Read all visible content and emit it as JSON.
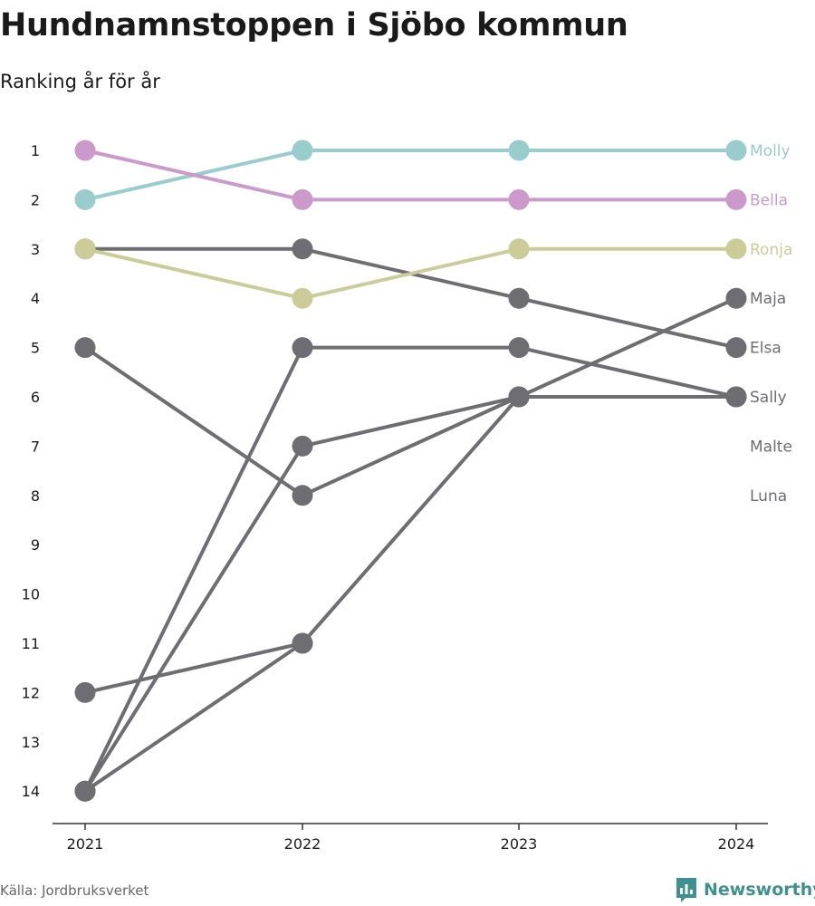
{
  "header": {
    "title": "Hundnamnstoppen i Sjöbo kommun",
    "subtitle": "Ranking år för år"
  },
  "footer": {
    "source": "Källa: Jordbruksverket",
    "brand": "Newsworthy",
    "brand_icon": "bar-chart-speech-bubble-icon"
  },
  "colors": {
    "molly": "#99cccc",
    "bella": "#cc99cc",
    "ronja": "#cccc99",
    "other": "#6e6d72",
    "axis": "#333333",
    "brand": "#3f9090"
  },
  "chart_data": {
    "type": "line",
    "x": [
      "2021",
      "2022",
      "2023",
      "2024"
    ],
    "ylim": [
      1,
      14
    ],
    "y_reversed": true,
    "y_ticks": [
      "1",
      "2",
      "3",
      "4",
      "5",
      "6",
      "7",
      "8",
      "9",
      "10",
      "11",
      "12",
      "13",
      "14"
    ],
    "grid": false,
    "series": [
      {
        "name": "Molly",
        "values": [
          2,
          1,
          1,
          1
        ],
        "color": "#99cccc",
        "highlight": true
      },
      {
        "name": "Bella",
        "values": [
          1,
          2,
          2,
          2
        ],
        "color": "#cc99cc",
        "highlight": true
      },
      {
        "name": "Ronja",
        "values": [
          3,
          4,
          3,
          3
        ],
        "color": "#cccc99",
        "highlight": true
      },
      {
        "name": "Maja",
        "values": [
          14,
          11,
          6,
          4
        ],
        "color": "#6e6d72",
        "highlight": false
      },
      {
        "name": "Elsa",
        "values": [
          3,
          3,
          4,
          5
        ],
        "color": "#6e6d72",
        "highlight": false
      },
      {
        "name": "Sally",
        "values": [
          14,
          7,
          6,
          6
        ],
        "color": "#6e6d72",
        "highlight": false
      },
      {
        "name": "Malte",
        "values": [
          5,
          8,
          6,
          6
        ],
        "color": "#6e6d72",
        "highlight": false
      },
      {
        "name": "Luna",
        "values": [
          14,
          5,
          5,
          6
        ],
        "color": "#6e6d72",
        "highlight": false
      },
      {
        "name": "",
        "values": [
          12,
          11,
          null,
          null
        ],
        "color": "#6e6d72",
        "highlight": false
      }
    ],
    "end_labels": [
      {
        "name": "Molly",
        "rank": 1
      },
      {
        "name": "Bella",
        "rank": 2
      },
      {
        "name": "Ronja",
        "rank": 3
      },
      {
        "name": "Maja",
        "rank": 4
      },
      {
        "name": "Elsa",
        "rank": 5
      },
      {
        "name": "Sally",
        "rank": 6
      },
      {
        "name": "Malte",
        "rank": 7
      },
      {
        "name": "Luna",
        "rank": 8
      }
    ]
  }
}
